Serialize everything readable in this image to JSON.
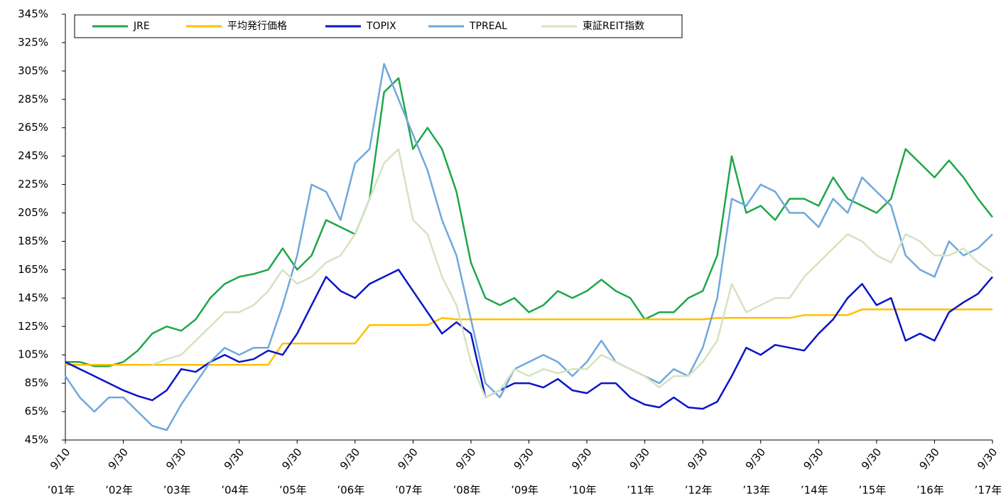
{
  "chart_data": {
    "type": "line",
    "categories": [
      "9/10",
      null,
      null,
      null,
      "9/30",
      null,
      null,
      null,
      "9/30",
      null,
      null,
      null,
      "9/30",
      null,
      null,
      null,
      "9/30",
      null,
      null,
      null,
      "9/30",
      null,
      null,
      null,
      "9/30",
      null,
      null,
      null,
      "9/30",
      null,
      null,
      null,
      "9/30",
      null,
      null,
      null,
      "9/30",
      null,
      null,
      null,
      "9/30",
      null,
      null,
      null,
      "9/30",
      null,
      null,
      null,
      "9/30",
      null,
      null,
      null,
      "9/30",
      null,
      null,
      null,
      "9/30",
      null,
      null,
      null,
      "9/30",
      null,
      null,
      null,
      "9/30"
    ],
    "category_years": [
      "’01年",
      null,
      null,
      null,
      "’02年",
      null,
      null,
      null,
      "’03年",
      null,
      null,
      null,
      "’04年",
      null,
      null,
      null,
      "’05年",
      null,
      null,
      null,
      "’06年",
      null,
      null,
      null,
      "’07年",
      null,
      null,
      null,
      "’08年",
      null,
      null,
      null,
      "’09年",
      null,
      null,
      null,
      "’10年",
      null,
      null,
      null,
      "’11年",
      null,
      null,
      null,
      "’12年",
      null,
      null,
      null,
      "’13年",
      null,
      null,
      null,
      "’14年",
      null,
      null,
      null,
      "’15年",
      null,
      null,
      null,
      "’16年",
      null,
      null,
      null,
      "’17年"
    ],
    "series": [
      {
        "name": "JRE",
        "color": "#1fa64a",
        "values": [
          100,
          100,
          97,
          97,
          100,
          108,
          120,
          125,
          122,
          130,
          145,
          155,
          160,
          162,
          165,
          180,
          165,
          175,
          200,
          195,
          190,
          215,
          290,
          300,
          250,
          265,
          250,
          220,
          170,
          145,
          140,
          145,
          135,
          140,
          150,
          145,
          150,
          158,
          150,
          145,
          130,
          135,
          135,
          145,
          150,
          175,
          245,
          205,
          210,
          200,
          215,
          215,
          210,
          230,
          215,
          210,
          205,
          215,
          250,
          240,
          230,
          242,
          230,
          215,
          202
        ]
      },
      {
        "name": "平均発行価格",
        "color": "#ffc000",
        "values": [
          98,
          98,
          98,
          98,
          98,
          98,
          98,
          98,
          98,
          98,
          98,
          98,
          98,
          98,
          98,
          113,
          113,
          113,
          113,
          113,
          113,
          126,
          126,
          126,
          126,
          126,
          131,
          130,
          130,
          130,
          130,
          130,
          130,
          130,
          130,
          130,
          130,
          130,
          130,
          130,
          130,
          130,
          130,
          130,
          130,
          131,
          131,
          131,
          131,
          131,
          131,
          133,
          133,
          133,
          133,
          137,
          137,
          137,
          137,
          137,
          137,
          137,
          137,
          137,
          137
        ]
      },
      {
        "name": "TOPIX",
        "color": "#0a14c8",
        "values": [
          100,
          95,
          90,
          85,
          80,
          76,
          73,
          80,
          95,
          93,
          100,
          105,
          100,
          102,
          108,
          105,
          120,
          140,
          160,
          150,
          145,
          155,
          160,
          165,
          150,
          135,
          120,
          128,
          120,
          75,
          80,
          85,
          85,
          82,
          88,
          80,
          78,
          85,
          85,
          75,
          70,
          68,
          75,
          68,
          67,
          72,
          90,
          110,
          105,
          112,
          110,
          108,
          120,
          130,
          145,
          155,
          140,
          145,
          115,
          120,
          115,
          135,
          142,
          148,
          160
        ]
      },
      {
        "name": "TPREAL",
        "color": "#6fa8dc",
        "values": [
          90,
          75,
          65,
          75,
          75,
          65,
          55,
          52,
          70,
          85,
          100,
          110,
          105,
          110,
          110,
          140,
          175,
          225,
          220,
          200,
          240,
          250,
          310,
          285,
          260,
          235,
          200,
          175,
          130,
          85,
          75,
          95,
          100,
          105,
          100,
          90,
          100,
          115,
          100,
          95,
          90,
          85,
          95,
          90,
          110,
          145,
          215,
          210,
          225,
          220,
          205,
          205,
          195,
          215,
          205,
          230,
          220,
          210,
          175,
          165,
          160,
          185,
          175,
          180,
          190
        ]
      },
      {
        "name": "東証REIT指数",
        "color": "#d5e3c0",
        "values": [
          null,
          null,
          null,
          null,
          null,
          null,
          98,
          102,
          105,
          115,
          125,
          135,
          135,
          140,
          150,
          165,
          155,
          160,
          170,
          175,
          190,
          215,
          240,
          250,
          200,
          190,
          160,
          140,
          100,
          75,
          80,
          95,
          90,
          95,
          92,
          95,
          95,
          105,
          100,
          95,
          90,
          82,
          90,
          90,
          100,
          115,
          155,
          135,
          140,
          145,
          145,
          160,
          170,
          180,
          190,
          185,
          175,
          170,
          190,
          185,
          175,
          175,
          180,
          170,
          163
        ]
      }
    ],
    "ylim": [
      45,
      345
    ],
    "yticks": [
      {
        "value": 45,
        "label": "45%"
      },
      {
        "value": 65,
        "label": "65%"
      },
      {
        "value": 85,
        "label": "85%"
      },
      {
        "value": 105,
        "label": "105%"
      },
      {
        "value": 125,
        "label": "125%"
      },
      {
        "value": 145,
        "label": "145%"
      },
      {
        "value": 165,
        "label": "165%"
      },
      {
        "value": 185,
        "label": "185%"
      },
      {
        "value": 205,
        "label": "205%"
      },
      {
        "value": 225,
        "label": "225%"
      },
      {
        "value": 245,
        "label": "245%"
      },
      {
        "value": 265,
        "label": "265%"
      },
      {
        "value": 285,
        "label": "285%"
      },
      {
        "value": 305,
        "label": "305%"
      },
      {
        "value": 325,
        "label": "325%"
      },
      {
        "value": 345,
        "label": "345%"
      }
    ],
    "grid": false,
    "legend": "top"
  }
}
